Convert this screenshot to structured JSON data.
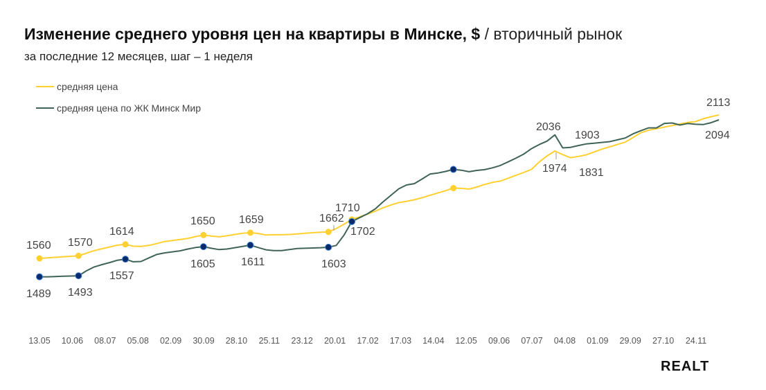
{
  "chart_data": {
    "type": "line",
    "title": "Изменение среднего уровня цен на квартиры в Минске, $",
    "title_suffix": "/ вторичный рынок",
    "subtitle": "за последние 12 месяцев, шаг – 1 неделя",
    "xlabel": "",
    "ylabel": "",
    "grid": false,
    "legend_position": "top-left",
    "x_tick_labels": [
      "13.05",
      "10.06",
      "08.07",
      "05.08",
      "02.09",
      "30.09",
      "28.10",
      "25.11",
      "23.12",
      "20.01",
      "17.02",
      "17.03",
      "14.04",
      "12.05",
      "09.06",
      "07.07",
      "04.08",
      "01.09",
      "29.09",
      "27.10",
      "24.11"
    ],
    "ylim": [
      1420,
      2180
    ],
    "series": [
      {
        "name": "средняя цена",
        "color": "#FFD02F",
        "values": [
          1560,
          1562,
          1564,
          1566,
          1568,
          1570,
          1580,
          1590,
          1597,
          1604,
          1611,
          1614,
          1607,
          1606,
          1610,
          1617,
          1625,
          1629,
          1633,
          1637,
          1644,
          1650,
          1646,
          1643,
          1647,
          1652,
          1657,
          1659,
          1656,
          1650,
          1651,
          1651,
          1652,
          1654,
          1657,
          1659,
          1661,
          1662,
          1675,
          1692,
          1710,
          1720,
          1731,
          1742,
          1755,
          1766,
          1775,
          1780,
          1786,
          1794,
          1803,
          1812,
          1821,
          1831,
          1830,
          1827,
          1835,
          1845,
          1853,
          1858,
          1869,
          1880,
          1891,
          1903,
          1932,
          1955,
          1974,
          1960,
          1948,
          1953,
          1959,
          1970,
          1981,
          1990,
          1999,
          2008,
          2026,
          2044,
          2054,
          2060,
          2066,
          2072,
          2078,
          2084,
          2087,
          2098,
          2106,
          2113
        ],
        "marked_points": [
          0,
          5,
          11,
          21,
          27,
          37,
          40,
          53
        ]
      },
      {
        "name": "средняя цена по ЖК Минск Мир",
        "color": "#3F6355",
        "marker_color": "#0A2A6B",
        "values": [
          1489,
          1489,
          1490,
          1491,
          1492,
          1493,
          1512,
          1527,
          1536,
          1544,
          1553,
          1557,
          1547,
          1548,
          1562,
          1575,
          1581,
          1585,
          1589,
          1596,
          1602,
          1605,
          1599,
          1594,
          1596,
          1601,
          1606,
          1611,
          1602,
          1593,
          1590,
          1590,
          1594,
          1598,
          1599,
          1600,
          1601,
          1603,
          1610,
          1650,
          1702,
          1717,
          1732,
          1751,
          1778,
          1803,
          1828,
          1843,
          1848,
          1866,
          1885,
          1889,
          1895,
          1903,
          1900,
          1894,
          1899,
          1902,
          1909,
          1918,
          1932,
          1946,
          1962,
          1983,
          1999,
          2012,
          2036,
          1986,
          1988,
          1995,
          2001,
          2004,
          2007,
          2010,
          2017,
          2024,
          2040,
          2052,
          2063,
          2063,
          2080,
          2082,
          2074,
          2080,
          2077,
          2076,
          2083,
          2094
        ],
        "marked_points": [
          0,
          5,
          11,
          21,
          27,
          37,
          40,
          53
        ]
      }
    ],
    "annotations": [
      {
        "text": "1560",
        "series": 0
      },
      {
        "text": "1570",
        "series": 0
      },
      {
        "text": "1614",
        "series": 0
      },
      {
        "text": "1650",
        "series": 0
      },
      {
        "text": "1659",
        "series": 0
      },
      {
        "text": "1662",
        "series": 0
      },
      {
        "text": "1710",
        "series": 0
      },
      {
        "text": "1974",
        "series": 0
      },
      {
        "text": "1831",
        "series": 0
      },
      {
        "text": "2113",
        "series": 0
      },
      {
        "text": "1489",
        "series": 1
      },
      {
        "text": "1493",
        "series": 1
      },
      {
        "text": "1557",
        "series": 1
      },
      {
        "text": "1605",
        "series": 1
      },
      {
        "text": "1611",
        "series": 1
      },
      {
        "text": "1603",
        "series": 1
      },
      {
        "text": "1702",
        "series": 1
      },
      {
        "text": "2036",
        "series": 1
      },
      {
        "text": "1903",
        "series": 1
      },
      {
        "text": "2094",
        "series": 1
      }
    ]
  },
  "logo": "REALT"
}
